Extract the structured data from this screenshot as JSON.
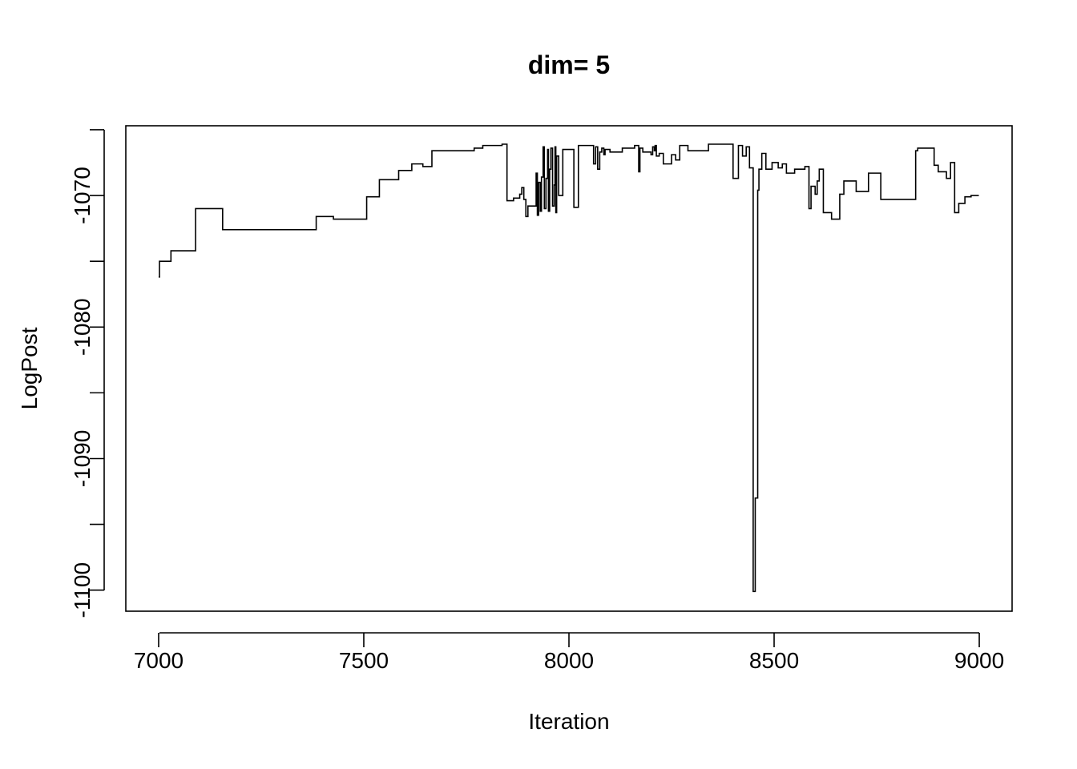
{
  "chart_data": {
    "type": "line",
    "line_style": "step",
    "title": "dim= 5",
    "xlabel": "Iteration",
    "ylabel": "LogPost",
    "xlim": [
      6920,
      9080
    ],
    "ylim": [
      -1101.6,
      -1064.7
    ],
    "xticks": [
      7000,
      7500,
      8000,
      8500,
      9000
    ],
    "xtick_labels": [
      "7000",
      "7500",
      "8000",
      "8500",
      "9000"
    ],
    "yticks": [
      -1100,
      -1095,
      -1090,
      -1085,
      -1080,
      -1075,
      -1070,
      -1065
    ],
    "ytick_labels": [
      "-1100",
      "",
      "-1090",
      "",
      "-1080",
      "",
      "-1070",
      ""
    ],
    "grid": false,
    "legend": "none",
    "series": [
      {
        "color": "#000000",
        "x": [
          7000,
          7002,
          7030,
          7090,
          7156,
          7384,
          7426,
          7507,
          7538,
          7585,
          7617,
          7644,
          7666,
          7769,
          7790,
          7837,
          7849,
          7865,
          7880,
          7885,
          7890,
          7895,
          7900,
          7920,
          7923,
          7926,
          7930,
          7933,
          7937,
          7940,
          7944,
          7948,
          7950,
          7953,
          7956,
          7960,
          7964,
          7966,
          7968,
          7970,
          7975,
          7985,
          8012,
          8023,
          8060,
          8065,
          8070,
          8075,
          8080,
          8085,
          8088,
          8100,
          8130,
          8160,
          8170,
          8173,
          8180,
          8200,
          8204,
          8208,
          8210,
          8213,
          8220,
          8230,
          8250,
          8260,
          8270,
          8290,
          8340,
          8400,
          8413,
          8423,
          8432,
          8440,
          8449,
          8454,
          8460,
          8463,
          8470,
          8480,
          8495,
          8510,
          8520,
          8530,
          8550,
          8575,
          8585,
          8590,
          8600,
          8605,
          8610,
          8620,
          8640,
          8660,
          8670,
          8700,
          8730,
          8760,
          8845,
          8850,
          8890,
          8900,
          8920,
          8930,
          8940,
          8950,
          8965,
          8980,
          8999
        ],
        "y": [
          -1076.2,
          -1075.0,
          -1074.2,
          -1071.0,
          -1072.6,
          -1071.6,
          -1071.8,
          -1070.1,
          -1068.8,
          -1068.1,
          -1067.6,
          -1067.8,
          -1066.6,
          -1066.4,
          -1066.2,
          -1066.1,
          -1070.4,
          -1070.2,
          -1069.9,
          -1069.4,
          -1070.3,
          -1071.6,
          -1070.8,
          -1068.3,
          -1071.5,
          -1069.0,
          -1071.2,
          -1068.6,
          -1066.3,
          -1071.0,
          -1068.7,
          -1066.5,
          -1071.2,
          -1068.0,
          -1066.4,
          -1070.8,
          -1069.2,
          -1066.3,
          -1071.3,
          -1067.0,
          -1070.0,
          -1066.5,
          -1070.9,
          -1066.2,
          -1067.6,
          -1066.3,
          -1068.0,
          -1066.7,
          -1066.4,
          -1066.9,
          -1066.5,
          -1066.7,
          -1066.4,
          -1066.2,
          -1068.2,
          -1066.4,
          -1066.7,
          -1066.9,
          -1066.3,
          -1066.6,
          -1066.2,
          -1067.0,
          -1066.8,
          -1067.6,
          -1066.9,
          -1067.3,
          -1066.2,
          -1066.6,
          -1066.1,
          -1068.7,
          -1066.2,
          -1067.0,
          -1066.3,
          -1067.9,
          -1100.1,
          -1093.0,
          -1069.6,
          -1068.0,
          -1066.8,
          -1068.0,
          -1067.5,
          -1067.9,
          -1067.6,
          -1068.3,
          -1068.0,
          -1067.8,
          -1071.0,
          -1069.3,
          -1069.9,
          -1068.9,
          -1068.0,
          -1071.3,
          -1071.8,
          -1069.9,
          -1068.9,
          -1069.7,
          -1068.3,
          -1070.3,
          -1066.6,
          -1066.4,
          -1067.7,
          -1068.2,
          -1068.7,
          -1067.5,
          -1071.3,
          -1070.6,
          -1070.1,
          -1070.0,
          -1070.0
        ]
      }
    ]
  }
}
